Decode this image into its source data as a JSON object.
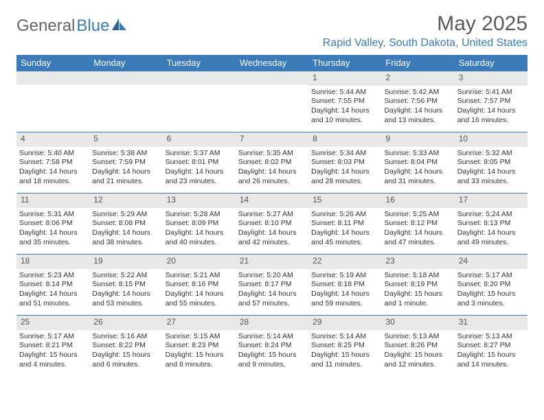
{
  "logo": {
    "part1": "General",
    "part2": "Blue"
  },
  "title": "May 2025",
  "location": "Rapid Valley, South Dakota, United States",
  "dayNames": [
    "Sunday",
    "Monday",
    "Tuesday",
    "Wednesday",
    "Thursday",
    "Friday",
    "Saturday"
  ],
  "colors": {
    "headerBar": "#3a7ab8",
    "dateStripe": "#e8e8e8",
    "rowBorder": "#3a7ab8",
    "titleText": "#5a5a5a",
    "locationText": "#3a7ab8",
    "logoGray": "#666666",
    "logoBlue": "#3a7ab8"
  },
  "weeks": [
    [
      {
        "date": "",
        "sunrise": "",
        "sunset": "",
        "daylight": ""
      },
      {
        "date": "",
        "sunrise": "",
        "sunset": "",
        "daylight": ""
      },
      {
        "date": "",
        "sunrise": "",
        "sunset": "",
        "daylight": ""
      },
      {
        "date": "",
        "sunrise": "",
        "sunset": "",
        "daylight": ""
      },
      {
        "date": "1",
        "sunrise": "Sunrise: 5:44 AM",
        "sunset": "Sunset: 7:55 PM",
        "daylight": "Daylight: 14 hours and 10 minutes."
      },
      {
        "date": "2",
        "sunrise": "Sunrise: 5:42 AM",
        "sunset": "Sunset: 7:56 PM",
        "daylight": "Daylight: 14 hours and 13 minutes."
      },
      {
        "date": "3",
        "sunrise": "Sunrise: 5:41 AM",
        "sunset": "Sunset: 7:57 PM",
        "daylight": "Daylight: 14 hours and 16 minutes."
      }
    ],
    [
      {
        "date": "4",
        "sunrise": "Sunrise: 5:40 AM",
        "sunset": "Sunset: 7:58 PM",
        "daylight": "Daylight: 14 hours and 18 minutes."
      },
      {
        "date": "5",
        "sunrise": "Sunrise: 5:38 AM",
        "sunset": "Sunset: 7:59 PM",
        "daylight": "Daylight: 14 hours and 21 minutes."
      },
      {
        "date": "6",
        "sunrise": "Sunrise: 5:37 AM",
        "sunset": "Sunset: 8:01 PM",
        "daylight": "Daylight: 14 hours and 23 minutes."
      },
      {
        "date": "7",
        "sunrise": "Sunrise: 5:35 AM",
        "sunset": "Sunset: 8:02 PM",
        "daylight": "Daylight: 14 hours and 26 minutes."
      },
      {
        "date": "8",
        "sunrise": "Sunrise: 5:34 AM",
        "sunset": "Sunset: 8:03 PM",
        "daylight": "Daylight: 14 hours and 28 minutes."
      },
      {
        "date": "9",
        "sunrise": "Sunrise: 5:33 AM",
        "sunset": "Sunset: 8:04 PM",
        "daylight": "Daylight: 14 hours and 31 minutes."
      },
      {
        "date": "10",
        "sunrise": "Sunrise: 5:32 AM",
        "sunset": "Sunset: 8:05 PM",
        "daylight": "Daylight: 14 hours and 33 minutes."
      }
    ],
    [
      {
        "date": "11",
        "sunrise": "Sunrise: 5:31 AM",
        "sunset": "Sunset: 8:06 PM",
        "daylight": "Daylight: 14 hours and 35 minutes."
      },
      {
        "date": "12",
        "sunrise": "Sunrise: 5:29 AM",
        "sunset": "Sunset: 8:08 PM",
        "daylight": "Daylight: 14 hours and 38 minutes."
      },
      {
        "date": "13",
        "sunrise": "Sunrise: 5:28 AM",
        "sunset": "Sunset: 8:09 PM",
        "daylight": "Daylight: 14 hours and 40 minutes."
      },
      {
        "date": "14",
        "sunrise": "Sunrise: 5:27 AM",
        "sunset": "Sunset: 8:10 PM",
        "daylight": "Daylight: 14 hours and 42 minutes."
      },
      {
        "date": "15",
        "sunrise": "Sunrise: 5:26 AM",
        "sunset": "Sunset: 8:11 PM",
        "daylight": "Daylight: 14 hours and 45 minutes."
      },
      {
        "date": "16",
        "sunrise": "Sunrise: 5:25 AM",
        "sunset": "Sunset: 8:12 PM",
        "daylight": "Daylight: 14 hours and 47 minutes."
      },
      {
        "date": "17",
        "sunrise": "Sunrise: 5:24 AM",
        "sunset": "Sunset: 8:13 PM",
        "daylight": "Daylight: 14 hours and 49 minutes."
      }
    ],
    [
      {
        "date": "18",
        "sunrise": "Sunrise: 5:23 AM",
        "sunset": "Sunset: 8:14 PM",
        "daylight": "Daylight: 14 hours and 51 minutes."
      },
      {
        "date": "19",
        "sunrise": "Sunrise: 5:22 AM",
        "sunset": "Sunset: 8:15 PM",
        "daylight": "Daylight: 14 hours and 53 minutes."
      },
      {
        "date": "20",
        "sunrise": "Sunrise: 5:21 AM",
        "sunset": "Sunset: 8:16 PM",
        "daylight": "Daylight: 14 hours and 55 minutes."
      },
      {
        "date": "21",
        "sunrise": "Sunrise: 5:20 AM",
        "sunset": "Sunset: 8:17 PM",
        "daylight": "Daylight: 14 hours and 57 minutes."
      },
      {
        "date": "22",
        "sunrise": "Sunrise: 5:19 AM",
        "sunset": "Sunset: 8:18 PM",
        "daylight": "Daylight: 14 hours and 59 minutes."
      },
      {
        "date": "23",
        "sunrise": "Sunrise: 5:18 AM",
        "sunset": "Sunset: 8:19 PM",
        "daylight": "Daylight: 15 hours and 1 minute."
      },
      {
        "date": "24",
        "sunrise": "Sunrise: 5:17 AM",
        "sunset": "Sunset: 8:20 PM",
        "daylight": "Daylight: 15 hours and 3 minutes."
      }
    ],
    [
      {
        "date": "25",
        "sunrise": "Sunrise: 5:17 AM",
        "sunset": "Sunset: 8:21 PM",
        "daylight": "Daylight: 15 hours and 4 minutes."
      },
      {
        "date": "26",
        "sunrise": "Sunrise: 5:16 AM",
        "sunset": "Sunset: 8:22 PM",
        "daylight": "Daylight: 15 hours and 6 minutes."
      },
      {
        "date": "27",
        "sunrise": "Sunrise: 5:15 AM",
        "sunset": "Sunset: 8:23 PM",
        "daylight": "Daylight: 15 hours and 8 minutes."
      },
      {
        "date": "28",
        "sunrise": "Sunrise: 5:14 AM",
        "sunset": "Sunset: 8:24 PM",
        "daylight": "Daylight: 15 hours and 9 minutes."
      },
      {
        "date": "29",
        "sunrise": "Sunrise: 5:14 AM",
        "sunset": "Sunset: 8:25 PM",
        "daylight": "Daylight: 15 hours and 11 minutes."
      },
      {
        "date": "30",
        "sunrise": "Sunrise: 5:13 AM",
        "sunset": "Sunset: 8:26 PM",
        "daylight": "Daylight: 15 hours and 12 minutes."
      },
      {
        "date": "31",
        "sunrise": "Sunrise: 5:13 AM",
        "sunset": "Sunset: 8:27 PM",
        "daylight": "Daylight: 15 hours and 14 minutes."
      }
    ]
  ]
}
